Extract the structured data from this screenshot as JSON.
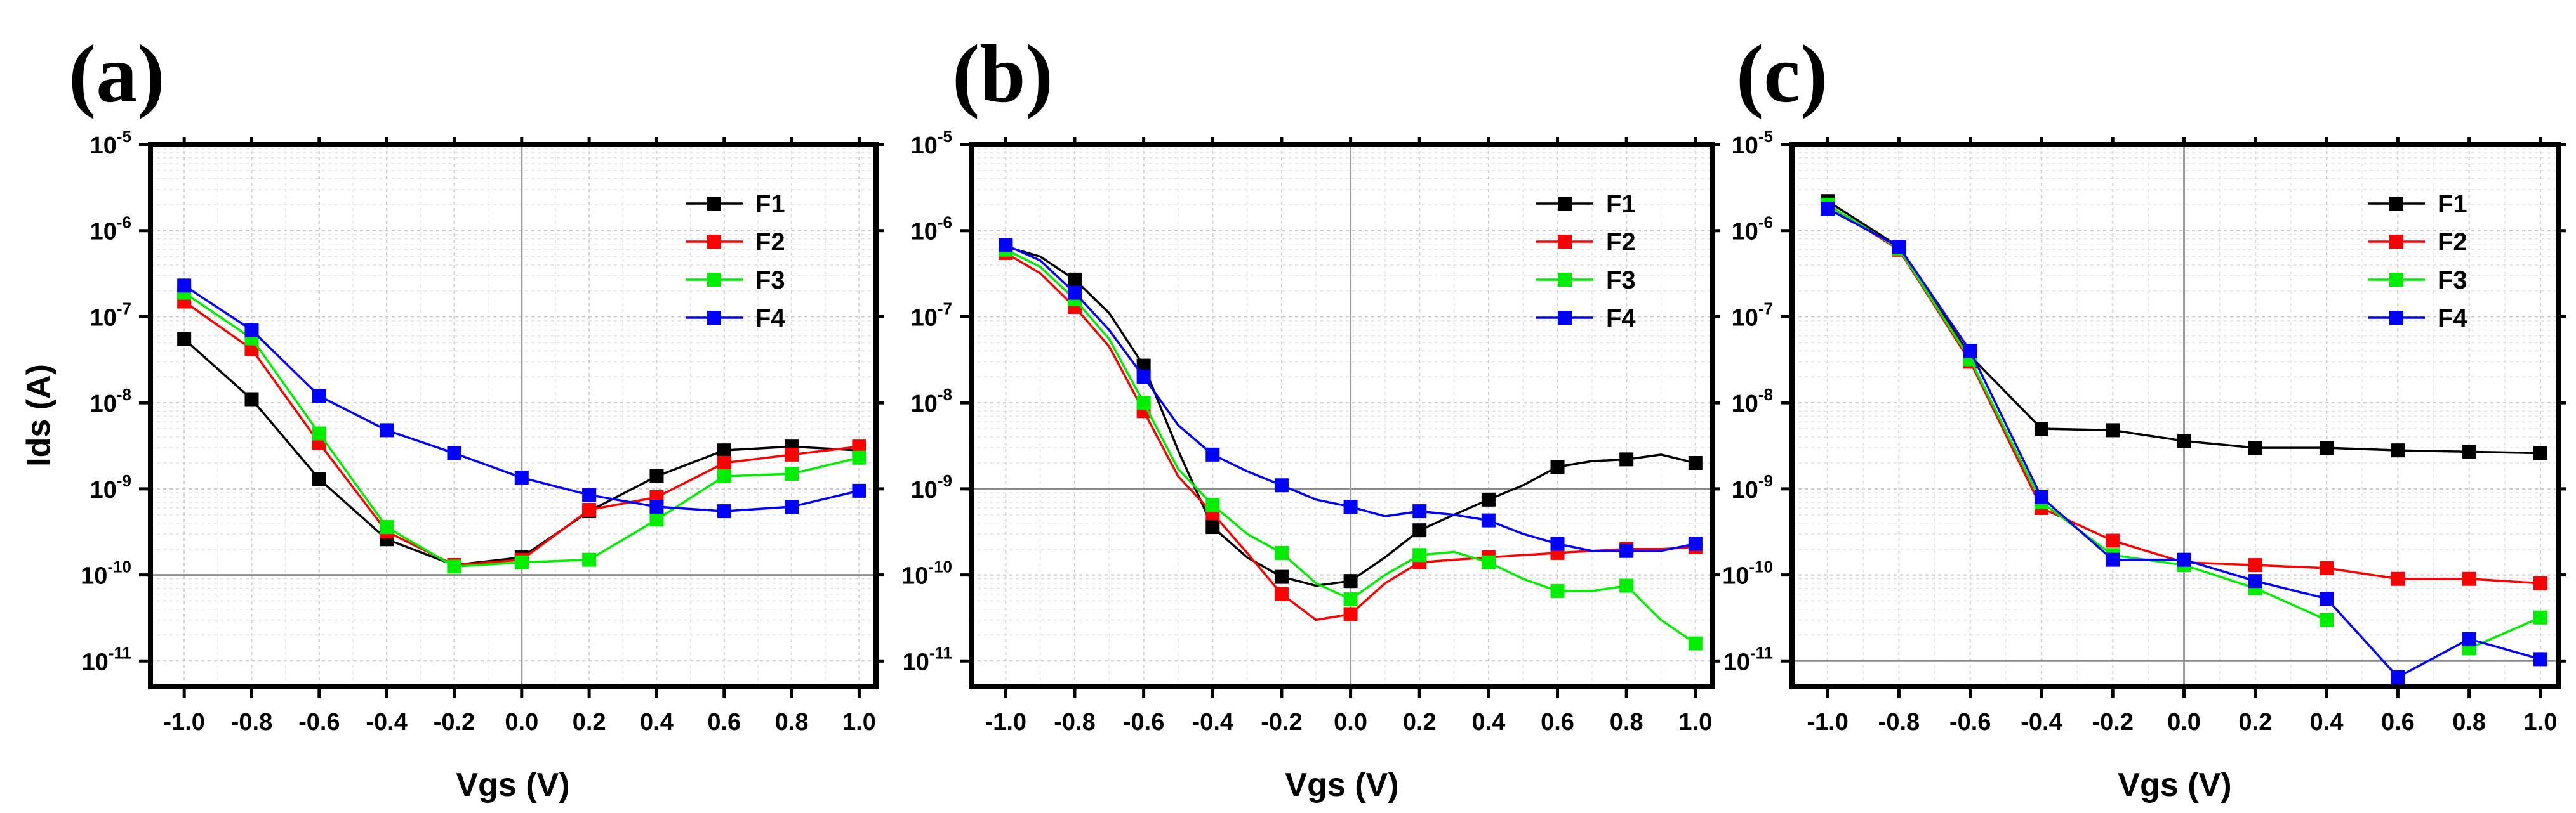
{
  "chart_data": [
    {
      "panel_label": "(a)",
      "type": "line",
      "yscale": "log",
      "xlabel": "Vgs (V)",
      "ylabel": "Ids (A)",
      "xlim": [
        -1.1,
        1.05
      ],
      "ylim_exp": [
        -11.3,
        -5
      ],
      "xticks": [
        "-1.0",
        "-0.8",
        "-0.6",
        "-0.4",
        "-0.2",
        "0.0",
        "0.2",
        "0.4",
        "0.6",
        "0.8",
        "1.0"
      ],
      "yticks": [
        {
          "base": "10",
          "exp": "-11"
        },
        {
          "base": "10",
          "exp": "-10"
        },
        {
          "base": "10",
          "exp": "-9"
        },
        {
          "base": "10",
          "exp": "-8"
        },
        {
          "base": "10",
          "exp": "-7"
        },
        {
          "base": "10",
          "exp": "-6"
        },
        {
          "base": "10",
          "exp": "-5"
        }
      ],
      "reference_line": 1e-10,
      "grid": true,
      "legend_position": "top-right",
      "series": [
        {
          "name": "F1",
          "color": "#000000",
          "x": [
            -1.0,
            -0.8,
            -0.6,
            -0.4,
            -0.2,
            0.0,
            0.2,
            0.4,
            0.6,
            0.8,
            1.0
          ],
          "y": [
            5.5e-08,
            1.1e-08,
            1.3e-09,
            2.6e-10,
            1.3e-10,
            1.6e-10,
            5.5e-10,
            1.4e-09,
            2.8e-09,
            3.1e-09,
            2.8e-09
          ]
        },
        {
          "name": "F2",
          "color": "#ff0000",
          "x": [
            -1.0,
            -0.8,
            -0.6,
            -0.4,
            -0.2,
            0.0,
            0.2,
            0.4,
            0.6,
            0.8,
            1.0
          ],
          "y": [
            1.5e-07,
            4.2e-08,
            3.4e-09,
            3.2e-10,
            1.3e-10,
            1.5e-10,
            5.7e-10,
            8e-10,
            2e-09,
            2.5e-09,
            3.1e-09
          ]
        },
        {
          "name": "F3",
          "color": "#00ee00",
          "x": [
            -1.0,
            -0.8,
            -0.6,
            -0.4,
            -0.2,
            0.0,
            0.2,
            0.4,
            0.6,
            0.8,
            1.0
          ],
          "y": [
            1.9e-07,
            5.6e-08,
            4.4e-09,
            3.6e-10,
            1.25e-10,
            1.4e-10,
            1.5e-10,
            4.4e-10,
            1.4e-09,
            1.5e-09,
            2.3e-09
          ]
        },
        {
          "name": "F4",
          "color": "#0000ff",
          "x": [
            -1.0,
            -0.8,
            -0.6,
            -0.4,
            -0.2,
            0.0,
            0.2,
            0.4,
            0.6,
            0.8,
            1.0
          ],
          "y": [
            2.3e-07,
            7e-08,
            1.2e-08,
            4.8e-09,
            2.6e-09,
            1.35e-09,
            8.5e-10,
            6.2e-10,
            5.5e-10,
            6.2e-10,
            9.5e-10
          ]
        }
      ]
    },
    {
      "panel_label": "(b)",
      "type": "line",
      "yscale": "log",
      "xlabel": "Vgs (V)",
      "ylabel": "",
      "xlim": [
        -1.1,
        1.05
      ],
      "ylim_exp": [
        -11.3,
        -5
      ],
      "xticks": [
        "-1.0",
        "-0.8",
        "-0.6",
        "-0.4",
        "-0.2",
        "0.0",
        "0.2",
        "0.4",
        "0.6",
        "0.8",
        "1.0"
      ],
      "yticks": [
        {
          "base": "10",
          "exp": "-11"
        },
        {
          "base": "10",
          "exp": "-10"
        },
        {
          "base": "10",
          "exp": "-9"
        },
        {
          "base": "10",
          "exp": "-8"
        },
        {
          "base": "10",
          "exp": "-7"
        },
        {
          "base": "10",
          "exp": "-6"
        },
        {
          "base": "10",
          "exp": "-5"
        }
      ],
      "reference_line": 1e-09,
      "grid": true,
      "legend_position": "top-right",
      "series": [
        {
          "name": "F1",
          "color": "#000000",
          "x": [
            -1.0,
            -0.9,
            -0.8,
            -0.7,
            -0.6,
            -0.5,
            -0.4,
            -0.3,
            -0.2,
            -0.1,
            0.0,
            0.1,
            0.2,
            0.3,
            0.4,
            0.5,
            0.6,
            0.7,
            0.8,
            0.9,
            1.0
          ],
          "y": [
            6.5e-07,
            5e-07,
            2.7e-07,
            1.1e-07,
            2.7e-08,
            2.8e-09,
            3.6e-10,
            1.6e-10,
            9.5e-11,
            7.5e-11,
            8.5e-11,
            1.6e-10,
            3.3e-10,
            5e-10,
            7.5e-10,
            1.1e-09,
            1.8e-09,
            2.1e-09,
            2.2e-09,
            2.5e-09,
            2e-09
          ],
          "markers": [
            0,
            2,
            4,
            6,
            8,
            10,
            12,
            14,
            16,
            18,
            20
          ]
        },
        {
          "name": "F2",
          "color": "#ff0000",
          "x": [
            -1.0,
            -0.9,
            -0.8,
            -0.7,
            -0.6,
            -0.5,
            -0.4,
            -0.3,
            -0.2,
            -0.1,
            0.0,
            0.1,
            0.2,
            0.3,
            0.4,
            0.5,
            0.6,
            0.7,
            0.8,
            0.9,
            1.0
          ],
          "y": [
            5.5e-07,
            3.2e-07,
            1.3e-07,
            4.5e-08,
            8e-09,
            1.4e-09,
            5.2e-10,
            1.8e-10,
            6e-11,
            3e-11,
            3.5e-11,
            8e-11,
            1.4e-10,
            1.5e-10,
            1.6e-10,
            1.7e-10,
            1.8e-10,
            1.9e-10,
            2e-10,
            2e-10,
            2.1e-10
          ],
          "markers": [
            0,
            2,
            4,
            6,
            8,
            10,
            12,
            14,
            16,
            18,
            20
          ]
        },
        {
          "name": "F3",
          "color": "#00ee00",
          "x": [
            -1.0,
            -0.9,
            -0.8,
            -0.7,
            -0.6,
            -0.5,
            -0.4,
            -0.3,
            -0.2,
            -0.1,
            0.0,
            0.1,
            0.2,
            0.3,
            0.4,
            0.5,
            0.6,
            0.7,
            0.8,
            0.9,
            1.0
          ],
          "y": [
            6e-07,
            3.8e-07,
            1.6e-07,
            5.5e-08,
            1e-08,
            1.7e-09,
            6.5e-10,
            3e-10,
            1.8e-10,
            8e-11,
            5.2e-11,
            1e-10,
            1.7e-10,
            1.85e-10,
            1.4e-10,
            9e-11,
            6.5e-11,
            6.5e-11,
            7.5e-11,
            3e-11,
            1.6e-11
          ],
          "markers": [
            0,
            2,
            4,
            6,
            8,
            10,
            12,
            14,
            16,
            18,
            20
          ]
        },
        {
          "name": "F4",
          "color": "#0000ff",
          "x": [
            -1.0,
            -0.9,
            -0.8,
            -0.7,
            -0.6,
            -0.5,
            -0.4,
            -0.3,
            -0.2,
            -0.1,
            0.0,
            0.1,
            0.2,
            0.3,
            0.4,
            0.5,
            0.6,
            0.7,
            0.8,
            0.9,
            1.0
          ],
          "y": [
            6.8e-07,
            4.5e-07,
            1.9e-07,
            7e-08,
            2e-08,
            5.5e-09,
            2.5e-09,
            1.6e-09,
            1.1e-09,
            7.5e-10,
            6.2e-10,
            4.8e-10,
            5.5e-10,
            5e-10,
            4.3e-10,
            3e-10,
            2.3e-10,
            1.9e-10,
            1.9e-10,
            1.9e-10,
            2.3e-10
          ],
          "markers": [
            0,
            2,
            4,
            6,
            8,
            10,
            12,
            14,
            16,
            18,
            20
          ]
        }
      ]
    },
    {
      "panel_label": "(c)",
      "type": "line",
      "yscale": "log",
      "xlabel": "Vgs (V)",
      "ylabel": "",
      "xlim": [
        -1.1,
        1.05
      ],
      "ylim_exp": [
        -11.3,
        -5
      ],
      "xticks": [
        "-1.0",
        "-0.8",
        "-0.6",
        "-0.4",
        "-0.2",
        "0.0",
        "0.2",
        "0.4",
        "0.6",
        "0.8",
        "1.0"
      ],
      "yticks": [
        {
          "base": "10",
          "exp": "-11"
        },
        {
          "base": "10",
          "exp": "-10"
        },
        {
          "base": "10",
          "exp": "-9"
        },
        {
          "base": "10",
          "exp": "-8"
        },
        {
          "base": "10",
          "exp": "-7"
        },
        {
          "base": "10",
          "exp": "-6"
        },
        {
          "base": "10",
          "exp": "-5"
        }
      ],
      "reference_line": 1e-11,
      "grid": true,
      "legend_position": "top-right",
      "series": [
        {
          "name": "F1",
          "color": "#000000",
          "x": [
            -1.0,
            -0.8,
            -0.6,
            -0.4,
            -0.2,
            0.0,
            0.2,
            0.4,
            0.6,
            0.8,
            1.0
          ],
          "y": [
            2.2e-06,
            6.5e-07,
            3.5e-08,
            5e-09,
            4.8e-09,
            3.6e-09,
            3e-09,
            3e-09,
            2.8e-09,
            2.7e-09,
            2.6e-09
          ]
        },
        {
          "name": "F2",
          "color": "#ff0000",
          "x": [
            -1.0,
            -0.8,
            -0.6,
            -0.4,
            -0.2,
            0.0,
            0.2,
            0.4,
            0.6,
            0.8,
            1.0
          ],
          "y": [
            2e-06,
            6e-07,
            3e-08,
            6e-10,
            2.5e-10,
            1.4e-10,
            1.3e-10,
            1.2e-10,
            9e-11,
            9e-11,
            8e-11
          ]
        },
        {
          "name": "F3",
          "color": "#00ee00",
          "x": [
            -1.0,
            -0.8,
            -0.6,
            -0.4,
            -0.2,
            0.0,
            0.2,
            0.4,
            0.6,
            0.8,
            1.0
          ],
          "y": [
            2e-06,
            6.2e-07,
            3.2e-08,
            7e-10,
            1.7e-10,
            1.3e-10,
            7e-11,
            3e-11,
            null,
            1.4e-11,
            3.2e-11
          ]
        },
        {
          "name": "F4",
          "color": "#0000ff",
          "x": [
            -1.0,
            -0.8,
            -0.6,
            -0.4,
            -0.2,
            0.0,
            0.2,
            0.4,
            0.6,
            0.8,
            1.0
          ],
          "y": [
            1.8e-06,
            6.5e-07,
            4e-08,
            8e-10,
            1.5e-10,
            1.5e-10,
            8.5e-11,
            5.3e-11,
            6.5e-12,
            1.8e-11,
            1.05e-11
          ]
        }
      ]
    }
  ]
}
